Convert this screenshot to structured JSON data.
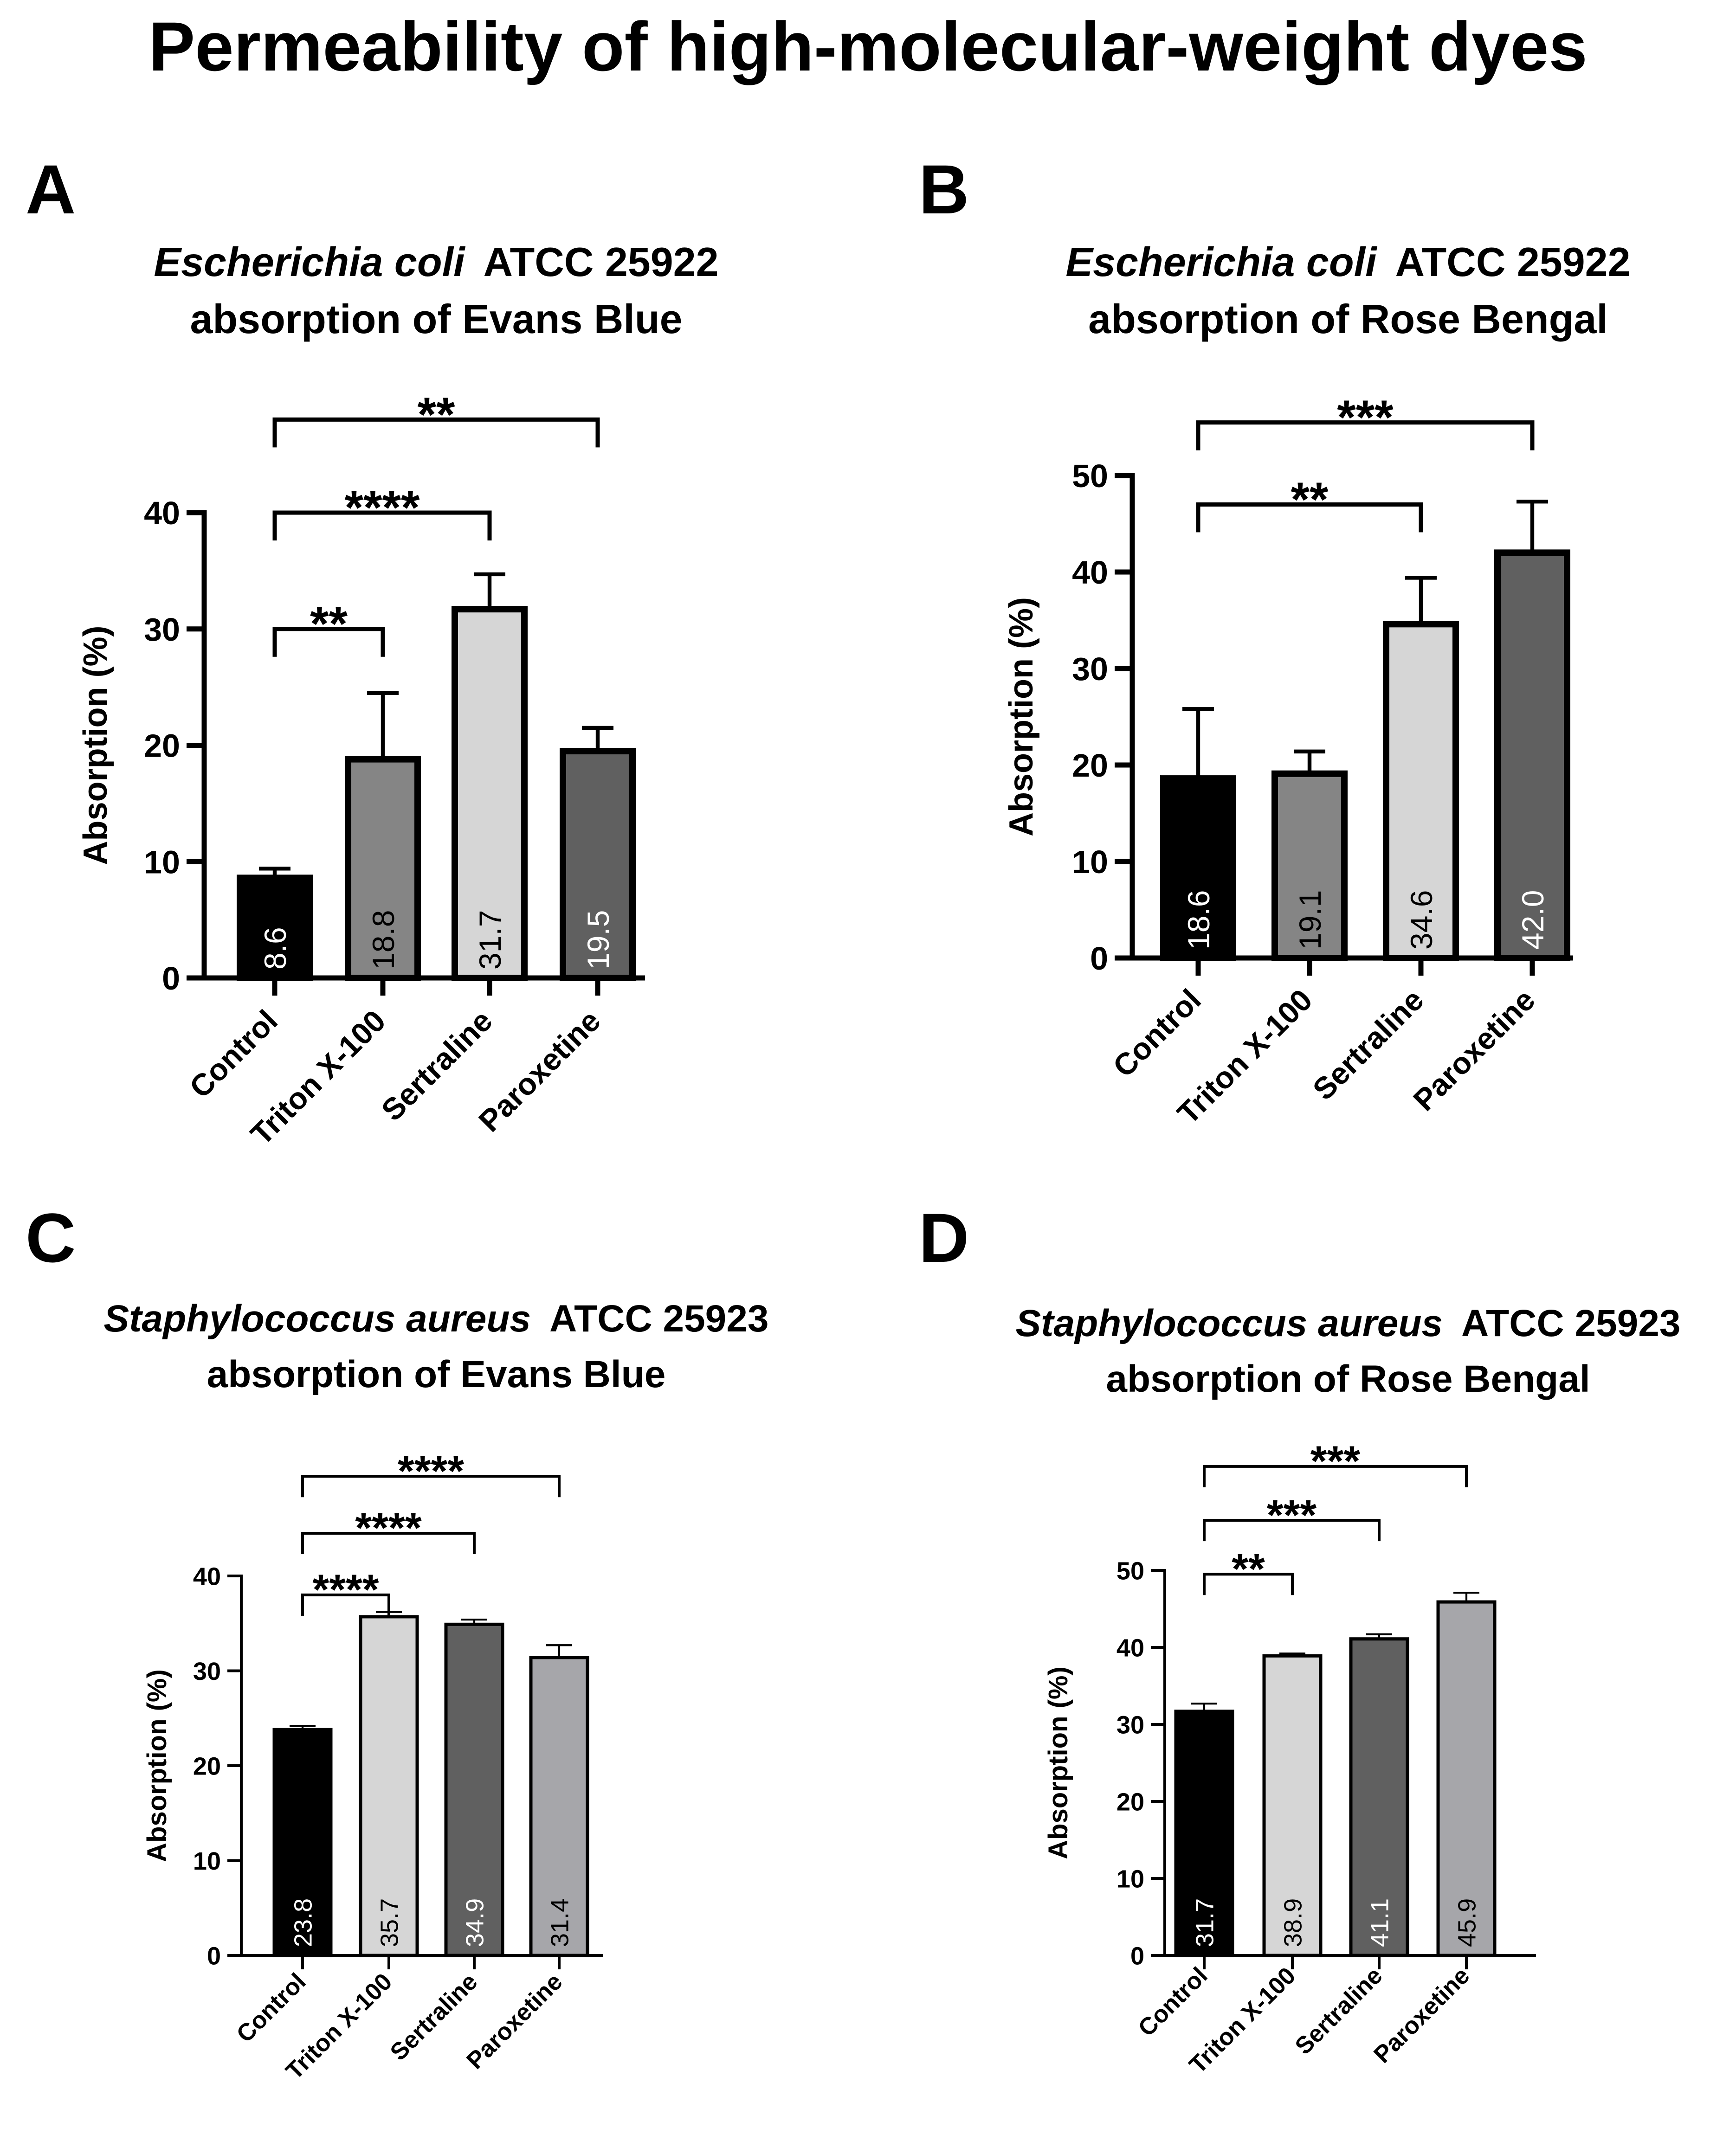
{
  "figure_title": "Permeability of high-molecular-weight dyes",
  "chart_data": [
    {
      "type": "bar",
      "panel_label": "A",
      "title_italic": "Escherichia coli",
      "title_rest": "ATCC 25922",
      "subtitle": "absorption of Evans Blue",
      "ylabel": "Absorption (%)",
      "ylim": [
        0,
        40
      ],
      "yticks": [
        0,
        10,
        20,
        30,
        40
      ],
      "categories": [
        "Control",
        "Triton X-100",
        "Sertraline",
        "Paroxetine"
      ],
      "values": [
        8.6,
        18.8,
        31.7,
        19.5
      ],
      "value_labels": [
        "8.6",
        "18.8",
        "31.7",
        "19.5"
      ],
      "errors": [
        0.8,
        5.7,
        3.0,
        2.0
      ],
      "colors": [
        "#000000",
        "#858585",
        "#d6d6d6",
        "#606060"
      ],
      "label_colors": [
        "#ffffff",
        "#000000",
        "#000000",
        "#ffffff"
      ],
      "significance": [
        {
          "from": 0,
          "to": 1,
          "label": "**",
          "y": 30
        },
        {
          "from": 0,
          "to": 2,
          "label": "****",
          "y": 40
        },
        {
          "from": 0,
          "to": 3,
          "label": "**",
          "y": 48
        }
      ]
    },
    {
      "type": "bar",
      "panel_label": "B",
      "title_italic": "Escherichia coli",
      "title_rest": "ATCC 25922",
      "subtitle": "absorption of Rose Bengal",
      "ylabel": "Absorption (%)",
      "ylim": [
        0,
        50
      ],
      "yticks": [
        0,
        10,
        20,
        30,
        40,
        50
      ],
      "categories": [
        "Control",
        "Triton X-100",
        "Sertraline",
        "Paroxetine"
      ],
      "values": [
        18.6,
        19.1,
        34.6,
        42.0
      ],
      "value_labels": [
        "18.6",
        "19.1",
        "34.6",
        "42.0"
      ],
      "errors": [
        7.2,
        2.3,
        4.8,
        5.3
      ],
      "colors": [
        "#000000",
        "#858585",
        "#d6d6d6",
        "#606060"
      ],
      "label_colors": [
        "#ffffff",
        "#000000",
        "#000000",
        "#ffffff"
      ],
      "significance": [
        {
          "from": 0,
          "to": 2,
          "label": "**",
          "y": 47
        },
        {
          "from": 0,
          "to": 3,
          "label": "***",
          "y": 55.5
        }
      ]
    },
    {
      "type": "bar",
      "panel_label": "C",
      "title_italic": "Staphylococcus aureus",
      "title_rest": "ATCC 25923",
      "subtitle": "absorption of Evans Blue",
      "ylabel": "Absorption (%)",
      "ylim": [
        0,
        40
      ],
      "yticks": [
        0,
        10,
        20,
        30,
        40
      ],
      "categories": [
        "Control",
        "Triton X-100",
        "Sertraline",
        "Paroxetine"
      ],
      "values": [
        23.8,
        35.7,
        34.9,
        31.4
      ],
      "value_labels": [
        "23.8",
        "35.7",
        "34.9",
        "31.4"
      ],
      "errors": [
        0.4,
        0.5,
        0.5,
        1.3
      ],
      "colors": [
        "#000000",
        "#d6d6d6",
        "#606060",
        "#a6a6aa"
      ],
      "label_colors": [
        "#ffffff",
        "#000000",
        "#ffffff",
        "#000000"
      ],
      "significance": [
        {
          "from": 0,
          "to": 1,
          "label": "****",
          "y": 38
        },
        {
          "from": 0,
          "to": 2,
          "label": "****",
          "y": 44.5
        },
        {
          "from": 0,
          "to": 3,
          "label": "****",
          "y": 50.5
        }
      ]
    },
    {
      "type": "bar",
      "panel_label": "D",
      "title_italic": "Staphylococcus aureus",
      "title_rest": "ATCC 25923",
      "subtitle": "absorption of Rose Bengal",
      "ylabel": "Absorption (%)",
      "ylim": [
        0,
        50
      ],
      "yticks": [
        0,
        10,
        20,
        30,
        40,
        50
      ],
      "categories": [
        "Control",
        "Triton X-100",
        "Sertraline",
        "Paroxetine"
      ],
      "values": [
        31.7,
        38.9,
        41.1,
        45.9
      ],
      "value_labels": [
        "31.7",
        "38.9",
        "41.1",
        "45.9"
      ],
      "errors": [
        1.0,
        0.3,
        0.6,
        1.2
      ],
      "colors": [
        "#000000",
        "#d6d6d6",
        "#606060",
        "#a6a6aa"
      ],
      "label_colors": [
        "#ffffff",
        "#000000",
        "#ffffff",
        "#000000"
      ],
      "significance": [
        {
          "from": 0,
          "to": 1,
          "label": "**",
          "y": 49.5
        },
        {
          "from": 0,
          "to": 2,
          "label": "***",
          "y": 56.5
        },
        {
          "from": 0,
          "to": 3,
          "label": "***",
          "y": 63.5
        }
      ]
    }
  ]
}
